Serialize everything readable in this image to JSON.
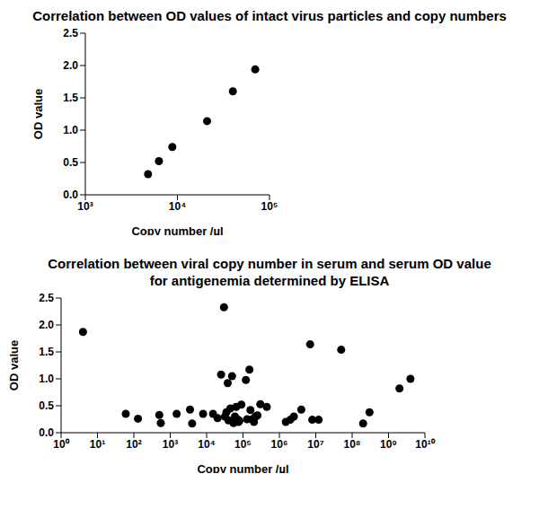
{
  "chart_data": [
    {
      "type": "scatter",
      "title": "Correlation between OD values of intact virus particles and copy numbers",
      "x_label": "Copy number /µl",
      "y_label": "OD value",
      "log": "x",
      "color": "#000000",
      "marker": "circle",
      "x": [
        4800,
        6300,
        8800,
        21000,
        40000,
        70000
      ],
      "values": [
        0.32,
        0.52,
        0.74,
        1.14,
        1.6,
        1.94
      ],
      "xlim": [
        1000,
        100000
      ],
      "xticks": [
        {
          "value": 1000,
          "label": "10³"
        },
        {
          "value": 10000,
          "label": "10⁴"
        },
        {
          "value": 100000,
          "label": "10⁵"
        }
      ],
      "ylim": [
        0,
        2.5
      ],
      "yticks": [
        {
          "value": 0,
          "label": "0.0"
        },
        {
          "value": 0.5,
          "label": "0.5"
        },
        {
          "value": 1,
          "label": "1.0"
        },
        {
          "value": 1.5,
          "label": "1.5"
        },
        {
          "value": 2,
          "label": "2.0"
        },
        {
          "value": 2.5,
          "label": "2.5"
        }
      ]
    },
    {
      "type": "scatter",
      "title": "Correlation between viral copy number in serum and serum OD value for antigenemia determined by ELISA",
      "x_label": "Copy number /µl",
      "y_label": "OD value",
      "log": "x",
      "color": "#000000",
      "marker": "circle",
      "x": [
        4,
        60,
        130,
        500,
        550,
        1500,
        3500,
        4000,
        8000,
        15000,
        20000,
        25000,
        30000,
        32000,
        35000,
        38000,
        40000,
        45000,
        50000,
        55000,
        60000,
        65000,
        70000,
        75000,
        80000,
        90000,
        120000,
        130000,
        150000,
        160000,
        180000,
        200000,
        220000,
        250000,
        300000,
        450000,
        1500000,
        2000000,
        2500000,
        4000000,
        7000000,
        8000000,
        12000000,
        50000000,
        200000000,
        300000000,
        2000000000,
        4000000000
      ],
      "values": [
        1.87,
        0.35,
        0.26,
        0.33,
        0.18,
        0.35,
        0.43,
        0.17,
        0.35,
        0.35,
        0.27,
        1.08,
        2.33,
        0.3,
        0.38,
        0.92,
        0.23,
        0.45,
        1.05,
        0.18,
        0.3,
        0.48,
        0.25,
        0.2,
        0.22,
        0.52,
        0.98,
        0.25,
        1.17,
        0.42,
        0.25,
        0.2,
        0.3,
        0.32,
        0.53,
        0.48,
        0.2,
        0.24,
        0.3,
        0.43,
        1.64,
        0.24,
        0.24,
        1.54,
        0.17,
        0.38,
        0.82,
        1.0
      ],
      "xlim": [
        1,
        10000000000
      ],
      "xticks": [
        {
          "value": 1,
          "label": "10⁰"
        },
        {
          "value": 10,
          "label": "10¹"
        },
        {
          "value": 100,
          "label": "10²"
        },
        {
          "value": 1000,
          "label": "10³"
        },
        {
          "value": 10000,
          "label": "10⁴"
        },
        {
          "value": 100000,
          "label": "10⁵"
        },
        {
          "value": 1000000,
          "label": "10⁶"
        },
        {
          "value": 10000000,
          "label": "10⁷"
        },
        {
          "value": 100000000,
          "label": "10⁸"
        },
        {
          "value": 1000000000,
          "label": "10⁹"
        },
        {
          "value": 10000000000,
          "label": "10¹⁰"
        }
      ],
      "ylim": [
        0,
        2.5
      ],
      "yticks": [
        {
          "value": 0,
          "label": "0.0"
        },
        {
          "value": 0.5,
          "label": "0.5"
        },
        {
          "value": 1,
          "label": "1.0"
        },
        {
          "value": 1.5,
          "label": "1.5"
        },
        {
          "value": 2,
          "label": "2.0"
        },
        {
          "value": 2.5,
          "label": "2.5"
        }
      ]
    }
  ]
}
